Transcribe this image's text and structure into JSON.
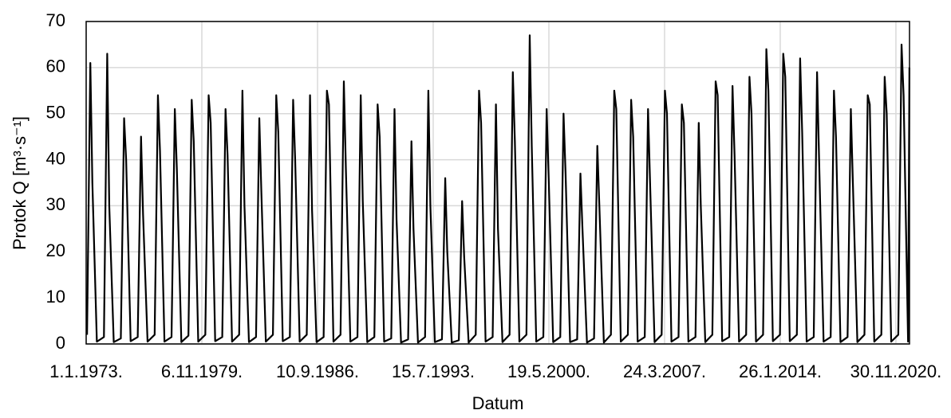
{
  "chart_data": {
    "type": "line",
    "xlabel": "Datum",
    "ylabel": "Protok Q [m³·s⁻¹]",
    "x": [
      "1973-01-20",
      "1973-04-01",
      "1973-05-15",
      "1973-08-20",
      "1974-01-20",
      "1974-04-01",
      "1974-05-15",
      "1974-08-20",
      "1975-01-20",
      "1975-04-01",
      "1975-05-15",
      "1975-08-20",
      "1976-01-20",
      "1976-04-01",
      "1976-05-15",
      "1976-08-20",
      "1977-01-20",
      "1977-04-01",
      "1977-05-15",
      "1977-08-20",
      "1978-01-20",
      "1978-04-01",
      "1978-05-15",
      "1978-08-20",
      "1979-01-20",
      "1979-04-01",
      "1979-05-15",
      "1979-08-20",
      "1980-01-20",
      "1980-04-01",
      "1980-05-15",
      "1980-08-20",
      "1981-01-20",
      "1981-04-01",
      "1981-05-15",
      "1981-08-20",
      "1982-01-20",
      "1982-04-01",
      "1982-05-15",
      "1982-08-20",
      "1983-01-20",
      "1983-04-01",
      "1983-05-15",
      "1983-08-20",
      "1984-01-20",
      "1984-04-01",
      "1984-05-15",
      "1984-08-20",
      "1985-01-20",
      "1985-04-01",
      "1985-05-15",
      "1985-08-20",
      "1986-01-20",
      "1986-04-01",
      "1986-05-15",
      "1986-08-20",
      "1987-01-20",
      "1987-04-01",
      "1987-05-15",
      "1987-08-20",
      "1988-01-20",
      "1988-04-01",
      "1988-05-15",
      "1988-08-20",
      "1989-01-20",
      "1989-04-01",
      "1989-05-15",
      "1989-08-20",
      "1990-01-20",
      "1990-04-01",
      "1990-05-15",
      "1990-08-20",
      "1991-01-20",
      "1991-04-01",
      "1991-05-15",
      "1991-08-20",
      "1992-01-20",
      "1992-04-01",
      "1992-05-15",
      "1992-08-20",
      "1993-01-20",
      "1993-04-01",
      "1993-05-15",
      "1993-08-20",
      "1994-01-20",
      "1994-04-01",
      "1994-05-15",
      "1994-08-20",
      "1995-01-20",
      "1995-04-01",
      "1995-05-15",
      "1995-08-20",
      "1996-01-20",
      "1996-04-01",
      "1996-05-15",
      "1996-08-20",
      "1997-01-20",
      "1997-04-01",
      "1997-05-15",
      "1997-08-20",
      "1998-01-20",
      "1998-04-01",
      "1998-05-15",
      "1998-08-20",
      "1999-01-20",
      "1999-04-01",
      "1999-05-15",
      "1999-08-20",
      "2000-01-20",
      "2000-04-01",
      "2000-05-15",
      "2000-08-20",
      "2001-01-20",
      "2001-04-01",
      "2001-05-15",
      "2001-08-20",
      "2002-01-20",
      "2002-04-01",
      "2002-05-15",
      "2002-08-20",
      "2003-01-20",
      "2003-04-01",
      "2003-05-15",
      "2003-08-20",
      "2004-01-20",
      "2004-04-01",
      "2004-05-15",
      "2004-08-20",
      "2005-01-20",
      "2005-04-01",
      "2005-05-15",
      "2005-08-20",
      "2006-01-20",
      "2006-04-01",
      "2006-05-15",
      "2006-08-20",
      "2007-01-20",
      "2007-04-01",
      "2007-05-15",
      "2007-08-20",
      "2008-01-20",
      "2008-04-01",
      "2008-05-15",
      "2008-08-20",
      "2009-01-20",
      "2009-04-01",
      "2009-05-15",
      "2009-08-20",
      "2010-01-20",
      "2010-04-01",
      "2010-05-15",
      "2010-08-20",
      "2011-01-20",
      "2011-04-01",
      "2011-05-15",
      "2011-08-20",
      "2012-01-20",
      "2012-04-01",
      "2012-05-15",
      "2012-08-20",
      "2013-01-20",
      "2013-04-01",
      "2013-05-15",
      "2013-08-20",
      "2014-01-20",
      "2014-04-01",
      "2014-05-15",
      "2014-08-20",
      "2015-01-20",
      "2015-04-01",
      "2015-05-15",
      "2015-08-20",
      "2016-01-20",
      "2016-04-01",
      "2016-05-15",
      "2016-08-20",
      "2017-01-20",
      "2017-04-01",
      "2017-05-15",
      "2017-08-20",
      "2018-01-20",
      "2018-04-01",
      "2018-05-15",
      "2018-08-20",
      "2019-01-20",
      "2019-04-01",
      "2019-05-15",
      "2019-08-20",
      "2020-01-20",
      "2020-04-01",
      "2020-05-15",
      "2020-08-20",
      "2021-01-20",
      "2021-04-01",
      "2021-05-15",
      "2021-08-20",
      "2021-09-18"
    ],
    "series": [
      {
        "name": "Protok Q",
        "color": "#000000",
        "values": [
          2,
          61,
          35,
          0.5,
          1.5,
          63,
          30,
          0.4,
          1.2,
          49,
          40,
          0.6,
          1.5,
          45,
          28,
          0.5,
          2,
          54,
          42,
          0.5,
          1.5,
          51,
          38,
          0.4,
          1.8,
          53,
          44,
          0.5,
          2,
          54,
          48,
          0.6,
          1.5,
          51,
          41,
          0.5,
          2,
          55,
          30,
          0.4,
          1.5,
          49,
          33,
          0.5,
          2,
          54,
          46,
          0.6,
          1.5,
          53,
          40,
          0.5,
          2,
          54,
          29,
          0.4,
          1.5,
          55,
          52,
          0.5,
          2,
          57,
          38,
          0.5,
          1.5,
          54,
          31,
          0.4,
          1.5,
          52,
          45,
          0.5,
          1.2,
          51,
          27,
          0.3,
          1,
          44,
          25,
          0.3,
          1.5,
          55,
          30,
          0.4,
          1,
          36,
          20,
          0.3,
          0.8,
          31,
          19,
          0.3,
          2,
          55,
          48,
          0.5,
          1.5,
          52,
          25,
          0.4,
          2,
          59,
          44,
          0.5,
          2,
          67,
          43,
          0.5,
          1.5,
          51,
          36,
          0.4,
          1.5,
          50,
          37,
          0.4,
          1,
          37,
          25,
          0.3,
          1.2,
          43,
          30,
          0.3,
          2,
          55,
          51,
          0.5,
          2,
          53,
          45,
          0.5,
          1.5,
          51,
          35,
          0.4,
          2,
          55,
          50,
          0.5,
          1.5,
          52,
          48,
          0.5,
          1.5,
          48,
          30,
          0.4,
          2,
          57,
          54,
          0.6,
          1.5,
          56,
          41,
          0.5,
          2,
          58,
          50,
          0.5,
          2,
          64,
          55,
          0.6,
          2,
          63,
          58,
          0.6,
          2,
          62,
          46,
          0.5,
          1.5,
          59,
          40,
          0.5,
          1.5,
          55,
          45,
          0.4,
          1.5,
          51,
          35,
          0.4,
          2,
          54,
          52,
          0.5,
          2,
          58,
          50,
          0.5,
          2,
          65,
          54,
          0.5,
          60
        ]
      }
    ],
    "xlim": [
      "1973-01-01",
      "2021-09-20"
    ],
    "xticks": [
      {
        "value": "1973-01-01",
        "label": "1.1.1973."
      },
      {
        "value": "1979-11-06",
        "label": "6.11.1979."
      },
      {
        "value": "1986-09-10",
        "label": "10.9.1986."
      },
      {
        "value": "1993-07-15",
        "label": "15.7.1993."
      },
      {
        "value": "2000-05-19",
        "label": "19.5.2000."
      },
      {
        "value": "2007-03-24",
        "label": "24.3.2007."
      },
      {
        "value": "2014-01-26",
        "label": "26.1.2014."
      },
      {
        "value": "2020-11-30",
        "label": "30.11.2020."
      }
    ],
    "ylim": [
      0,
      70
    ],
    "yticks": [
      0,
      10,
      20,
      30,
      40,
      50,
      60,
      70
    ],
    "grid": true
  }
}
